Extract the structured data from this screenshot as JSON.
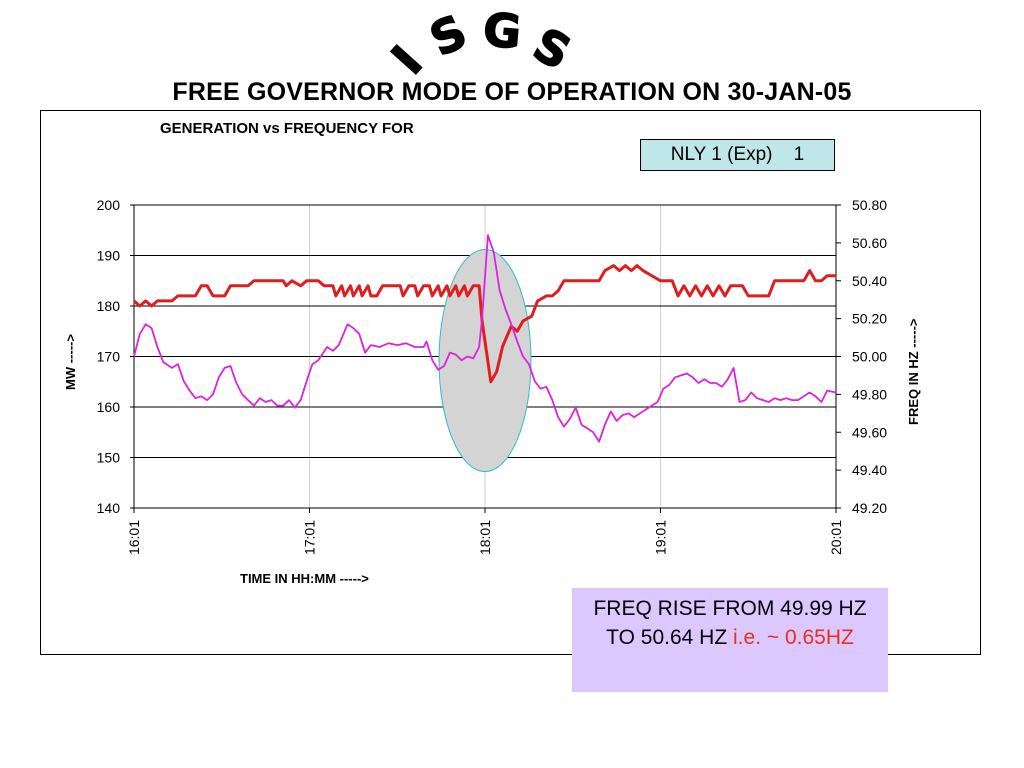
{
  "slide": {
    "logo_letters": [
      "I",
      "S",
      "G",
      "S"
    ],
    "title": "FREE GOVERNOR MODE OF OPERATION ON 30-JAN-05",
    "unit_label": "NLY 1 (Exp)    1",
    "note_main": "FREQ RISE FROM 49.99 HZ TO 50.64 HZ",
    "note_highlight": "i.e. ~ 0.65HZ"
  },
  "colors": {
    "generation_line": "#dd1f1f",
    "frequency_line": "#dd22dd",
    "highlight_ellipse_fill": "#d4d4d4",
    "highlight_ellipse_stroke": "#33bbcc",
    "unit_box_bg": "#bfe7ea",
    "note_box_bg": "#dcc8ff",
    "note_highlight": "#e8301a"
  },
  "chart_data": {
    "type": "line",
    "title": "GENERATION vs FREQUENCY FOR",
    "xlabel": "TIME IN HH:MM ----->",
    "ylabel": "MW ----->",
    "y2label": "FREQ IN HZ ----->",
    "x_range": [
      "16:01",
      "20:01"
    ],
    "x_ticks": [
      "16:01",
      "17:01",
      "18:01",
      "19:01",
      "20:01"
    ],
    "ylim": [
      140,
      200
    ],
    "y_ticks": [
      "140",
      "150",
      "160",
      "170",
      "180",
      "190",
      "200"
    ],
    "y2lim": [
      49.2,
      50.8
    ],
    "y2_ticks": [
      "49.20",
      "49.40",
      "49.60",
      "49.80",
      "50.00",
      "50.20",
      "50.40",
      "50.60",
      "50.80"
    ],
    "grid": "horizontal major gridlines",
    "highlight": "shaded ellipse around the 18:01 frequency spike",
    "series": [
      {
        "axis": "left",
        "points": [
          [
            "16:01",
            181
          ],
          [
            "16:03",
            180
          ],
          [
            "16:05",
            181
          ],
          [
            "16:07",
            180
          ],
          [
            "16:09",
            181
          ],
          [
            "16:14",
            181
          ],
          [
            "16:16",
            182
          ],
          [
            "16:22",
            182
          ],
          [
            "16:24",
            184
          ],
          [
            "16:26",
            184
          ],
          [
            "16:28",
            182
          ],
          [
            "16:32",
            182
          ],
          [
            "16:34",
            184
          ],
          [
            "16:40",
            184
          ],
          [
            "16:42",
            185
          ],
          [
            "16:52",
            185
          ],
          [
            "16:53",
            184
          ],
          [
            "16:55",
            185
          ],
          [
            "16:58",
            184
          ],
          [
            "17:00",
            185
          ],
          [
            "17:04",
            185
          ],
          [
            "17:06",
            184
          ],
          [
            "17:09",
            184
          ],
          [
            "17:10",
            182
          ],
          [
            "17:12",
            184
          ],
          [
            "17:13",
            182
          ],
          [
            "17:15",
            184
          ],
          [
            "17:16",
            182
          ],
          [
            "17:18",
            184
          ],
          [
            "17:19",
            182
          ],
          [
            "17:21",
            184
          ],
          [
            "17:22",
            182
          ],
          [
            "17:24",
            182
          ],
          [
            "17:26",
            184
          ],
          [
            "17:32",
            184
          ],
          [
            "17:33",
            182
          ],
          [
            "17:35",
            184
          ],
          [
            "17:37",
            184
          ],
          [
            "17:38",
            182
          ],
          [
            "17:40",
            184
          ],
          [
            "17:42",
            184
          ],
          [
            "17:43",
            182
          ],
          [
            "17:45",
            184
          ],
          [
            "17:46",
            182
          ],
          [
            "17:48",
            184
          ],
          [
            "17:49",
            182
          ],
          [
            "17:51",
            184
          ],
          [
            "17:52",
            182
          ],
          [
            "17:54",
            184
          ],
          [
            "17:55",
            182
          ],
          [
            "17:57",
            184
          ],
          [
            "17:59",
            184
          ],
          [
            "18:00",
            177
          ],
          [
            "18:03",
            165
          ],
          [
            "18:05",
            167
          ],
          [
            "18:07",
            172
          ],
          [
            "18:10",
            176
          ],
          [
            "18:12",
            175
          ],
          [
            "18:14",
            177
          ],
          [
            "18:17",
            178
          ],
          [
            "18:19",
            181
          ],
          [
            "18:22",
            182
          ],
          [
            "18:24",
            182
          ],
          [
            "18:26",
            183
          ],
          [
            "18:28",
            185
          ],
          [
            "18:40",
            185
          ],
          [
            "18:42",
            187
          ],
          [
            "18:45",
            188
          ],
          [
            "18:47",
            187
          ],
          [
            "18:49",
            188
          ],
          [
            "18:51",
            187
          ],
          [
            "18:53",
            188
          ],
          [
            "18:55",
            187
          ],
          [
            "18:58",
            186
          ],
          [
            "19:01",
            185
          ],
          [
            "19:05",
            185
          ],
          [
            "19:07",
            182
          ],
          [
            "19:09",
            184
          ],
          [
            "19:11",
            182
          ],
          [
            "19:13",
            184
          ],
          [
            "19:15",
            182
          ],
          [
            "19:17",
            184
          ],
          [
            "19:19",
            182
          ],
          [
            "19:21",
            184
          ],
          [
            "19:23",
            182
          ],
          [
            "19:25",
            184
          ],
          [
            "19:29",
            184
          ],
          [
            "19:31",
            182
          ],
          [
            "19:38",
            182
          ],
          [
            "19:40",
            185
          ],
          [
            "19:50",
            185
          ],
          [
            "19:52",
            187
          ],
          [
            "19:54",
            185
          ],
          [
            "19:56",
            185
          ],
          [
            "19:58",
            186
          ],
          [
            "20:01",
            186
          ]
        ]
      },
      {
        "axis": "right",
        "points": [
          [
            "16:01",
            50.0
          ],
          [
            "16:03",
            50.12
          ],
          [
            "16:05",
            50.17
          ],
          [
            "16:07",
            50.15
          ],
          [
            "16:09",
            50.05
          ],
          [
            "16:11",
            49.97
          ],
          [
            "16:14",
            49.94
          ],
          [
            "16:16",
            49.96
          ],
          [
            "16:18",
            49.87
          ],
          [
            "16:20",
            49.82
          ],
          [
            "16:22",
            49.78
          ],
          [
            "16:24",
            49.79
          ],
          [
            "16:26",
            49.77
          ],
          [
            "16:28",
            49.8
          ],
          [
            "16:30",
            49.89
          ],
          [
            "16:32",
            49.94
          ],
          [
            "16:34",
            49.95
          ],
          [
            "16:36",
            49.86
          ],
          [
            "16:38",
            49.8
          ],
          [
            "16:40",
            49.77
          ],
          [
            "16:42",
            49.74
          ],
          [
            "16:44",
            49.78
          ],
          [
            "16:46",
            49.76
          ],
          [
            "16:48",
            49.77
          ],
          [
            "16:50",
            49.74
          ],
          [
            "16:52",
            49.74
          ],
          [
            "16:54",
            49.77
          ],
          [
            "16:56",
            49.73
          ],
          [
            "16:58",
            49.77
          ],
          [
            "17:00",
            49.87
          ],
          [
            "17:02",
            49.96
          ],
          [
            "17:04",
            49.98
          ],
          [
            "17:07",
            50.05
          ],
          [
            "17:09",
            50.03
          ],
          [
            "17:11",
            50.06
          ],
          [
            "17:14",
            50.17
          ],
          [
            "17:16",
            50.15
          ],
          [
            "17:18",
            50.12
          ],
          [
            "17:20",
            50.02
          ],
          [
            "17:22",
            50.06
          ],
          [
            "17:25",
            50.05
          ],
          [
            "17:28",
            50.07
          ],
          [
            "17:31",
            50.06
          ],
          [
            "17:34",
            50.07
          ],
          [
            "17:37",
            50.05
          ],
          [
            "17:40",
            50.05
          ],
          [
            "17:41",
            50.08
          ],
          [
            "17:43",
            49.98
          ],
          [
            "17:45",
            49.93
          ],
          [
            "17:47",
            49.95
          ],
          [
            "17:49",
            50.02
          ],
          [
            "17:51",
            50.01
          ],
          [
            "17:53",
            49.98
          ],
          [
            "17:55",
            50.0
          ],
          [
            "17:57",
            49.99
          ],
          [
            "17:59",
            50.05
          ],
          [
            "18:00",
            50.2
          ],
          [
            "18:02",
            50.64
          ],
          [
            "18:04",
            50.55
          ],
          [
            "18:06",
            50.35
          ],
          [
            "18:08",
            50.25
          ],
          [
            "18:10",
            50.17
          ],
          [
            "18:12",
            50.08
          ],
          [
            "18:14",
            50.0
          ],
          [
            "18:16",
            49.96
          ],
          [
            "18:18",
            49.87
          ],
          [
            "18:20",
            49.83
          ],
          [
            "18:22",
            49.84
          ],
          [
            "18:24",
            49.77
          ],
          [
            "18:26",
            49.68
          ],
          [
            "18:28",
            49.63
          ],
          [
            "18:30",
            49.67
          ],
          [
            "18:32",
            49.73
          ],
          [
            "18:34",
            49.64
          ],
          [
            "18:36",
            49.62
          ],
          [
            "18:38",
            49.6
          ],
          [
            "18:40",
            49.55
          ],
          [
            "18:42",
            49.64
          ],
          [
            "18:44",
            49.71
          ],
          [
            "18:46",
            49.66
          ],
          [
            "18:48",
            49.69
          ],
          [
            "18:50",
            49.7
          ],
          [
            "18:52",
            49.68
          ],
          [
            "18:54",
            49.7
          ],
          [
            "18:56",
            49.72
          ],
          [
            "18:58",
            49.74
          ],
          [
            "19:00",
            49.76
          ],
          [
            "19:02",
            49.83
          ],
          [
            "19:04",
            49.85
          ],
          [
            "19:06",
            49.89
          ],
          [
            "19:08",
            49.9
          ],
          [
            "19:10",
            49.91
          ],
          [
            "19:12",
            49.89
          ],
          [
            "19:14",
            49.86
          ],
          [
            "19:16",
            49.88
          ],
          [
            "19:18",
            49.86
          ],
          [
            "19:20",
            49.86
          ],
          [
            "19:22",
            49.84
          ],
          [
            "19:24",
            49.88
          ],
          [
            "19:26",
            49.94
          ],
          [
            "19:28",
            49.76
          ],
          [
            "19:30",
            49.77
          ],
          [
            "19:32",
            49.81
          ],
          [
            "19:34",
            49.78
          ],
          [
            "19:36",
            49.77
          ],
          [
            "19:38",
            49.76
          ],
          [
            "19:40",
            49.78
          ],
          [
            "19:42",
            49.77
          ],
          [
            "19:44",
            49.78
          ],
          [
            "19:46",
            49.77
          ],
          [
            "19:48",
            49.77
          ],
          [
            "19:50",
            49.79
          ],
          [
            "19:52",
            49.81
          ],
          [
            "19:54",
            49.79
          ],
          [
            "19:56",
            49.76
          ],
          [
            "19:58",
            49.82
          ],
          [
            "20:01",
            49.81
          ]
        ]
      }
    ]
  }
}
